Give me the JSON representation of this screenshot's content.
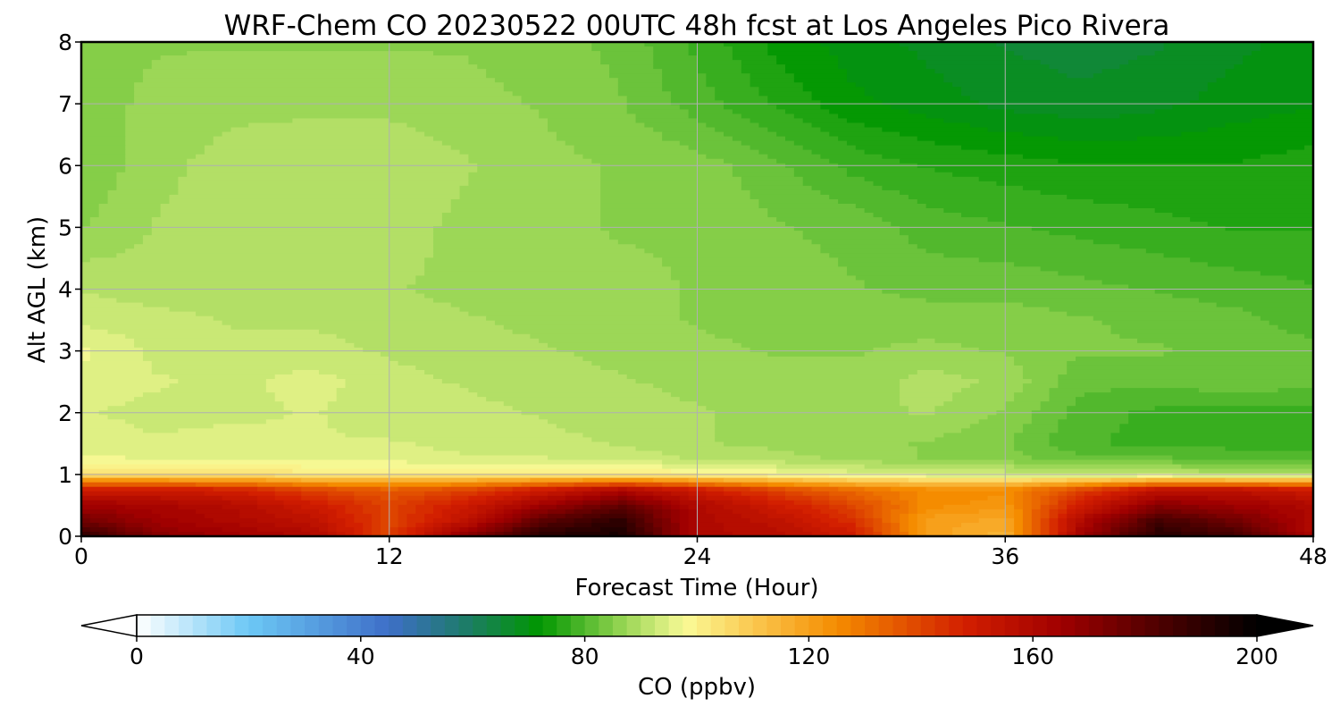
{
  "chart_data": {
    "type": "heatmap",
    "title": "WRF-Chem CO  20230522 00UTC 48h fcst at Los Angeles Pico Rivera",
    "xlabel": "Forecast Time (Hour)",
    "ylabel": "Alt AGL (km)",
    "xlim": [
      0,
      48
    ],
    "ylim": [
      0,
      8
    ],
    "x_ticks": [
      "0",
      "12",
      "24",
      "36",
      "48"
    ],
    "y_ticks": [
      "0",
      "1",
      "2",
      "3",
      "4",
      "5",
      "6",
      "7",
      "8"
    ],
    "grid": true,
    "colorbar": {
      "label": "CO  (ppbv)",
      "range": [
        0,
        200
      ],
      "ticks": [
        "0",
        "40",
        "80",
        "120",
        "160",
        "200"
      ],
      "extend": "both",
      "stops": [
        {
          "v": 0,
          "c": "#ffffff"
        },
        {
          "v": 20,
          "c": "#6cc8f5"
        },
        {
          "v": 45,
          "c": "#3e6fc8"
        },
        {
          "v": 58,
          "c": "#1f7a6e"
        },
        {
          "v": 72,
          "c": "#009600"
        },
        {
          "v": 86,
          "c": "#8fd24e"
        },
        {
          "v": 98,
          "c": "#fafa96"
        },
        {
          "v": 110,
          "c": "#fac850"
        },
        {
          "v": 125,
          "c": "#f58c00"
        },
        {
          "v": 148,
          "c": "#d21e00"
        },
        {
          "v": 165,
          "c": "#a00000"
        },
        {
          "v": 182,
          "c": "#500000"
        },
        {
          "v": 200,
          "c": "#000000"
        }
      ]
    },
    "times_h": [
      0,
      3,
      6,
      9,
      12,
      15,
      18,
      21,
      24,
      27,
      30,
      33,
      36,
      39,
      42,
      45,
      48
    ],
    "altitudes_km": [
      0,
      0.25,
      0.5,
      0.75,
      1.0,
      1.25,
      1.5,
      2.0,
      2.5,
      3.0,
      3.5,
      4.0,
      5.0,
      6.0,
      7.0,
      8.0
    ],
    "values_ppbv": [
      [
        190,
        170,
        165,
        160,
        140,
        170,
        192,
        195,
        160,
        158,
        150,
        120,
        115,
        165,
        192,
        185,
        160
      ],
      [
        175,
        165,
        160,
        155,
        140,
        155,
        180,
        190,
        160,
        155,
        145,
        120,
        118,
        160,
        185,
        175,
        160
      ],
      [
        165,
        162,
        158,
        150,
        140,
        150,
        165,
        178,
        160,
        150,
        140,
        125,
        122,
        150,
        170,
        165,
        160
      ],
      [
        150,
        150,
        148,
        140,
        135,
        140,
        150,
        160,
        150,
        140,
        132,
        125,
        125,
        140,
        155,
        155,
        150
      ],
      [
        105,
        105,
        105,
        102,
        102,
        102,
        102,
        102,
        100,
        98,
        95,
        94,
        93,
        92,
        92,
        90,
        90
      ],
      [
        97,
        96,
        96,
        95,
        95,
        94,
        94,
        93,
        91,
        90,
        88,
        86,
        85,
        82,
        82,
        80,
        80
      ],
      [
        95,
        94,
        95,
        94,
        94,
        93,
        92,
        91,
        89,
        88,
        87,
        86,
        84,
        79,
        78,
        78,
        78
      ],
      [
        94,
        93,
        93,
        94,
        92,
        92,
        91,
        90,
        89,
        88,
        88,
        89,
        86,
        80,
        78,
        78,
        78
      ],
      [
        95,
        94,
        93,
        95,
        92,
        91,
        90,
        89,
        88,
        88,
        87,
        90,
        88,
        82,
        82,
        83,
        82
      ],
      [
        97,
        93,
        92,
        92,
        91,
        90,
        89,
        88,
        87,
        86,
        86,
        87,
        86,
        84,
        84,
        83,
        82
      ],
      [
        93,
        92,
        91,
        91,
        90,
        89,
        88,
        87,
        86,
        85,
        85,
        85,
        85,
        84,
        83,
        82,
        80
      ],
      [
        91,
        90,
        90,
        90,
        89,
        88,
        88,
        87,
        86,
        85,
        84,
        83,
        83,
        82,
        81,
        80,
        79
      ],
      [
        86,
        89,
        90,
        90,
        90,
        88,
        87,
        86,
        86,
        84,
        83,
        80,
        79,
        78,
        77,
        76,
        76
      ],
      [
        84,
        88,
        90,
        91,
        91,
        89,
        87,
        86,
        85,
        82,
        78,
        76,
        75,
        74,
        74,
        74,
        75
      ],
      [
        85,
        87,
        88,
        88,
        88,
        87,
        86,
        84,
        80,
        76,
        72,
        70,
        68,
        67,
        68,
        70,
        71
      ],
      [
        85,
        86,
        86,
        86,
        86,
        86,
        85,
        83,
        78,
        73,
        70,
        68,
        66,
        65,
        66,
        68,
        70
      ]
    ]
  }
}
